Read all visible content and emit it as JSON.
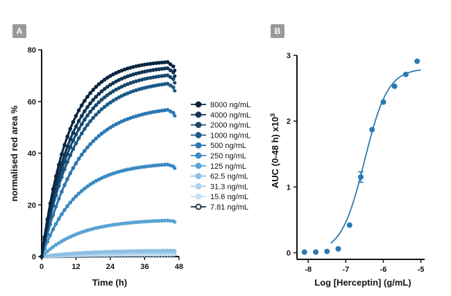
{
  "panels": {
    "a_label": "A",
    "b_label": "B"
  },
  "chart_data": [
    {
      "type": "line",
      "panel": "A",
      "xlabel": "Time (h)",
      "ylabel": "normalised red area %",
      "xlim": [
        0,
        48
      ],
      "ylim": [
        0,
        80
      ],
      "xticks": [
        0,
        12,
        24,
        36,
        48
      ],
      "yticks": [
        0,
        20,
        40,
        60,
        80
      ],
      "legend_position": "center-right",
      "series": [
        {
          "name": "8000 ng/mL",
          "color": "#0b2540",
          "plateau": 76,
          "rate": 0.105
        },
        {
          "name": "4000 ng/mL",
          "color": "#113555",
          "plateau": 74,
          "rate": 0.095
        },
        {
          "name": "2000 ng/mL",
          "color": "#18486e",
          "plateau": 71.5,
          "rate": 0.09
        },
        {
          "name": "1000 ng/mL",
          "color": "#1d5a86",
          "plateau": 68.5,
          "rate": 0.085
        },
        {
          "name": "500 ng/mL",
          "color": "#2b78b4",
          "plateau": 58.5,
          "rate": 0.08
        },
        {
          "name": "250 ng/mL",
          "color": "#3a8ac4",
          "plateau": 36.5,
          "rate": 0.085
        },
        {
          "name": "125 ng/mL",
          "color": "#5aa2d3",
          "plateau": 14.5,
          "rate": 0.075
        },
        {
          "name": "62.5 ng/mL",
          "color": "#8ec0e4",
          "plateau": 2.5,
          "rate": 0.06
        },
        {
          "name": "31.3 ng/mL",
          "color": "#a9d0ec",
          "plateau": 1.8,
          "rate": 0.05
        },
        {
          "name": "15.6 ng/mL",
          "color": "#c8e0f2",
          "plateau": 1.0,
          "rate": 0.05
        },
        {
          "name": "7.81 ng/mL",
          "color": "#0b2540",
          "plateau": 0.5,
          "rate": 0.05,
          "open_marker": true
        }
      ]
    },
    {
      "type": "scatter",
      "panel": "B",
      "xlabel": "Log [Herceptin] (g/mL)",
      "ylabel": "AUC (0-48 h) x10",
      "ylabel_superscript": "3",
      "xlim": [
        -8.3,
        -4.9
      ],
      "ylim": [
        -0.1,
        3.0
      ],
      "xticks": [
        -8,
        -7,
        -6,
        -5
      ],
      "yticks": [
        0,
        1,
        2,
        3
      ],
      "color": "#2a7ab0",
      "points": [
        {
          "x": -8.1,
          "y": 0.01
        },
        {
          "x": -7.8,
          "y": 0.01
        },
        {
          "x": -7.5,
          "y": 0.02
        },
        {
          "x": -7.2,
          "y": 0.06
        },
        {
          "x": -6.9,
          "y": 0.42
        },
        {
          "x": -6.6,
          "y": 1.15,
          "err": 0.08
        },
        {
          "x": -6.3,
          "y": 1.87
        },
        {
          "x": -6.0,
          "y": 2.29
        },
        {
          "x": -5.7,
          "y": 2.53
        },
        {
          "x": -5.4,
          "y": 2.71
        },
        {
          "x": -5.1,
          "y": 2.91
        }
      ],
      "fit": {
        "model": "sigmoid",
        "bottom": 0.0,
        "top": 2.8,
        "logEC50": -6.5,
        "hill": 1.4,
        "x_from": -7.4,
        "x_to": -5.0
      }
    }
  ]
}
